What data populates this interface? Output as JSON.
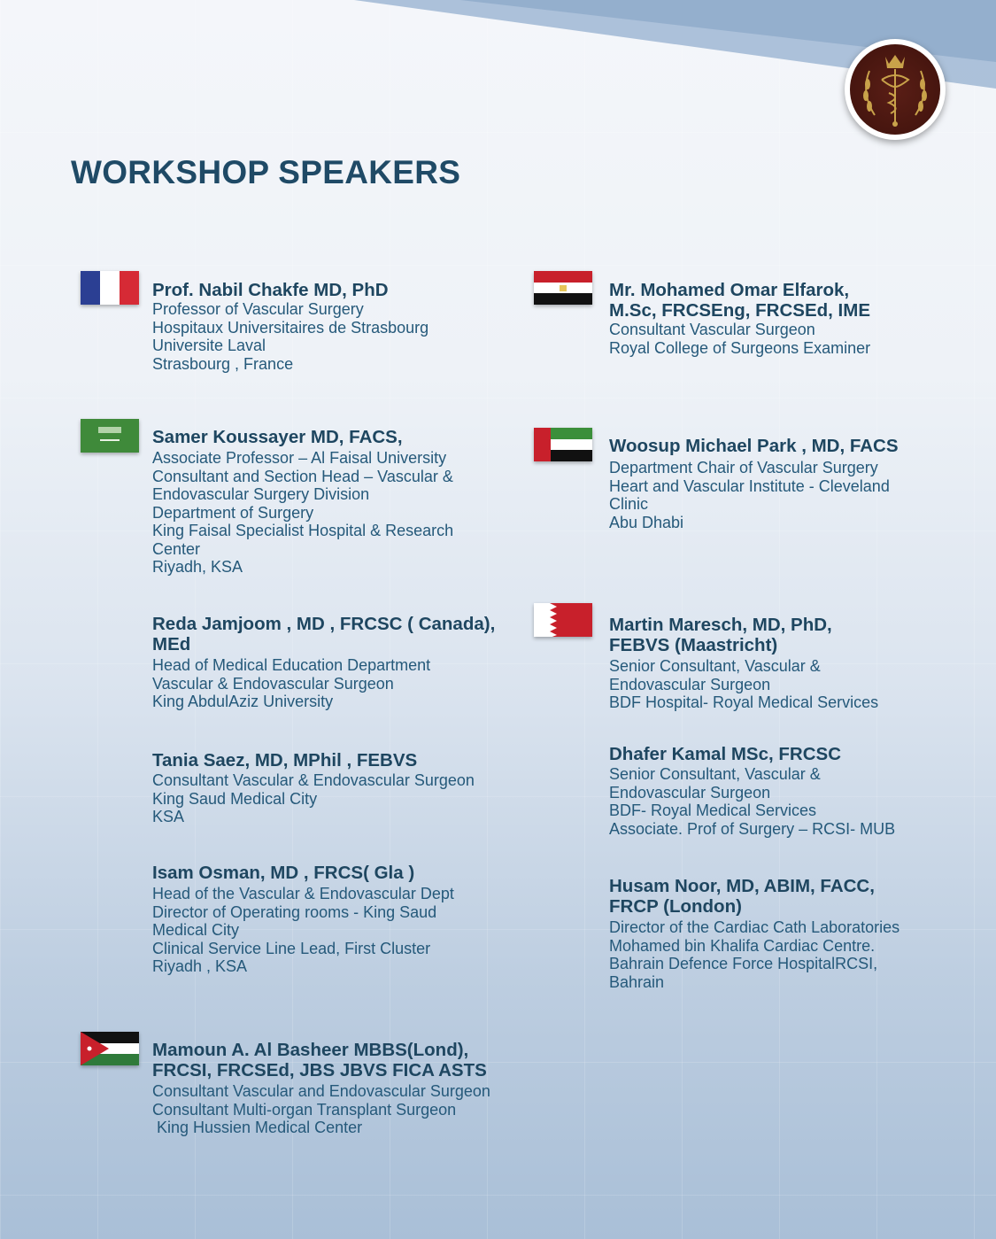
{
  "title": "WORKSHOP SPEAKERS",
  "logo": {
    "icon": "caduceus-crown-laurel-emblem",
    "colors": {
      "background": "#4a1711",
      "emblem": "#c9a24a"
    }
  },
  "colors": {
    "title": "#1f4a66",
    "text": "#25597a"
  },
  "left_column": [
    {
      "flag": "france",
      "name_lines": [
        "Prof. Nabil Chakfe MD, PhD"
      ],
      "details": [
        "Professor of Vascular Surgery",
        "Hospitaux Universitaires de Strasbourg",
        "Universite Laval",
        "Strasbourg , France"
      ]
    },
    {
      "flag": "saudi-arabia",
      "name_lines": [
        "Samer Koussayer MD, FACS,"
      ],
      "details": [
        "Associate Professor – Al Faisal University",
        "Consultant and Section Head – Vascular &",
        "Endovascular Surgery Division",
        "Department of Surgery",
        "King Faisal Specialist Hospital & Research",
        "Center",
        "Riyadh, KSA"
      ]
    },
    {
      "flag": "",
      "name_lines": [
        "Reda Jamjoom , MD , FRCSC ( Canada),",
        "MEd"
      ],
      "details": [
        "Head of Medical Education Department",
        "Vascular & Endovascular Surgeon",
        "King AbdulAziz University"
      ]
    },
    {
      "flag": "",
      "name_lines": [
        "Tania Saez, MD, MPhil , FEBVS"
      ],
      "details": [
        "Consultant Vascular & Endovascular Surgeon",
        "King Saud Medical City",
        "KSA"
      ]
    },
    {
      "flag": "",
      "name_lines": [
        "Isam Osman, MD , FRCS( Gla )"
      ],
      "details": [
        "Head of the Vascular & Endovascular Dept",
        "Director of Operating rooms - King Saud",
        "Medical City",
        "Clinical Service Line Lead, First Cluster",
        "Riyadh , KSA"
      ]
    },
    {
      "flag": "jordan",
      "name_lines": [
        "Mamoun A. Al Basheer MBBS(Lond),",
        "FRCSI, FRCSEd, JBS JBVS FICA ASTS"
      ],
      "details": [
        "Consultant Vascular and Endovascular Surgeon",
        "Consultant Multi-organ Transplant Surgeon",
        " King Hussien Medical Center"
      ]
    }
  ],
  "right_column": [
    {
      "flag": "egypt",
      "name_lines": [
        "Mr. Mohamed Omar Elfarok,",
        "M.Sc, FRCSEng, FRCSEd, IME"
      ],
      "details": [
        "Consultant Vascular Surgeon",
        "Royal College of Surgeons Examiner"
      ]
    },
    {
      "flag": "uae",
      "name_lines": [
        "Woosup Michael Park , MD, FACS"
      ],
      "details": [
        "Department Chair of Vascular Surgery",
        "Heart and Vascular Institute - Cleveland",
        "Clinic",
        "Abu Dhabi"
      ]
    },
    {
      "flag": "bahrain",
      "name_lines": [
        "Martin Maresch, MD, PhD,",
        "FEBVS (Maastricht)"
      ],
      "details": [
        "Senior Consultant, Vascular &",
        "Endovascular Surgeon",
        "BDF Hospital- Royal Medical Services"
      ]
    },
    {
      "flag": "",
      "name_lines": [
        "Dhafer Kamal MSc, FRCSC"
      ],
      "details": [
        "Senior Consultant, Vascular &",
        "Endovascular Surgeon",
        "BDF- Royal Medical Services",
        "Associate. Prof of Surgery – RCSI- MUB"
      ]
    },
    {
      "flag": "",
      "name_lines": [
        "Husam Noor, MD, ABIM, FACC,",
        "FRCP (London)"
      ],
      "details": [
        "Director of the Cardiac Cath Laboratories",
        "Mohamed bin Khalifa Cardiac Centre.",
        "Bahrain Defence Force HospitalRCSI,",
        "Bahrain"
      ]
    }
  ]
}
